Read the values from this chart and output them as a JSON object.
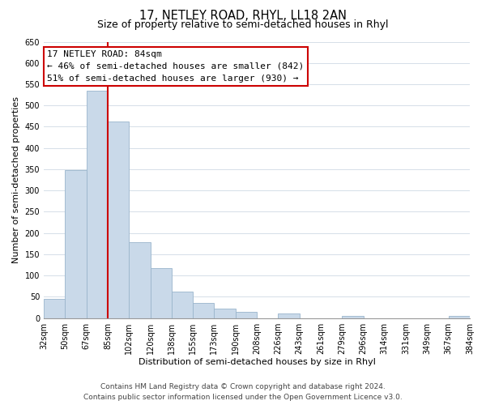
{
  "title": "17, NETLEY ROAD, RHYL, LL18 2AN",
  "subtitle": "Size of property relative to semi-detached houses in Rhyl",
  "xlabel": "Distribution of semi-detached houses by size in Rhyl",
  "ylabel": "Number of semi-detached properties",
  "num_bins": 20,
  "bar_heights": [
    46,
    348,
    535,
    463,
    178,
    118,
    62,
    36,
    22,
    15,
    0,
    10,
    0,
    0,
    5,
    0,
    0,
    0,
    0,
    5
  ],
  "tick_labels": [
    "32sqm",
    "50sqm",
    "67sqm",
    "85sqm",
    "102sqm",
    "120sqm",
    "138sqm",
    "155sqm",
    "173sqm",
    "190sqm",
    "208sqm",
    "226sqm",
    "243sqm",
    "261sqm",
    "279sqm",
    "296sqm",
    "314sqm",
    "331sqm",
    "349sqm",
    "367sqm",
    "384sqm"
  ],
  "bar_color": "#c9d9e9",
  "bar_edge_color": "#9ab5cc",
  "grid_color": "#d5dfe8",
  "marker_bin": 3,
  "marker_label": "17 NETLEY ROAD: 84sqm",
  "annotation_line1": "← 46% of semi-detached houses are smaller (842)",
  "annotation_line2": "51% of semi-detached houses are larger (930) →",
  "annotation_box_color": "#ffffff",
  "annotation_box_edge": "#cc0000",
  "marker_line_color": "#cc0000",
  "ylim": [
    0,
    650
  ],
  "yticks": [
    0,
    50,
    100,
    150,
    200,
    250,
    300,
    350,
    400,
    450,
    500,
    550,
    600,
    650
  ],
  "footer_line1": "Contains HM Land Registry data © Crown copyright and database right 2024.",
  "footer_line2": "Contains public sector information licensed under the Open Government Licence v3.0.",
  "title_fontsize": 10.5,
  "subtitle_fontsize": 9,
  "axis_label_fontsize": 8,
  "tick_fontsize": 7,
  "annotation_fontsize": 8,
  "footer_fontsize": 6.5
}
